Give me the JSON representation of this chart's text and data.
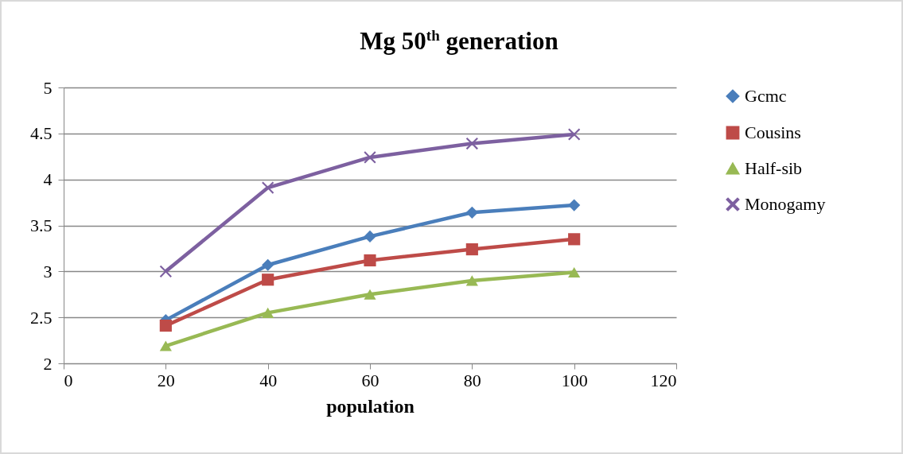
{
  "chart_data": {
    "type": "line",
    "title": "Mg 50$^{th}$ generation",
    "xlabel": "population",
    "x": [
      20,
      40,
      60,
      80,
      100
    ],
    "series": [
      {
        "name": "Gcmc",
        "color": "#4a7ebb",
        "marker": "diamond",
        "values": [
          2.47,
          3.07,
          3.38,
          3.64,
          3.72
        ]
      },
      {
        "name": "Cousins",
        "color": "#be4b48",
        "marker": "square",
        "values": [
          2.41,
          2.91,
          3.12,
          3.24,
          3.35
        ]
      },
      {
        "name": "Half-sib",
        "color": "#98b954",
        "marker": "triangle",
        "values": [
          2.19,
          2.55,
          2.75,
          2.9,
          2.99
        ]
      },
      {
        "name": "Monogamy",
        "color": "#7d60a0",
        "marker": "cross",
        "values": [
          3.0,
          3.91,
          4.24,
          4.39,
          4.49
        ]
      }
    ],
    "xlim": [
      0,
      120
    ],
    "xticks": [
      0,
      20,
      40,
      60,
      80,
      100,
      120
    ],
    "ylim": [
      2,
      5
    ],
    "yticks": [
      2,
      2.5,
      3,
      3.5,
      4,
      4.5,
      5
    ],
    "grid": "y",
    "legend": "right",
    "line_style": "solid"
  }
}
